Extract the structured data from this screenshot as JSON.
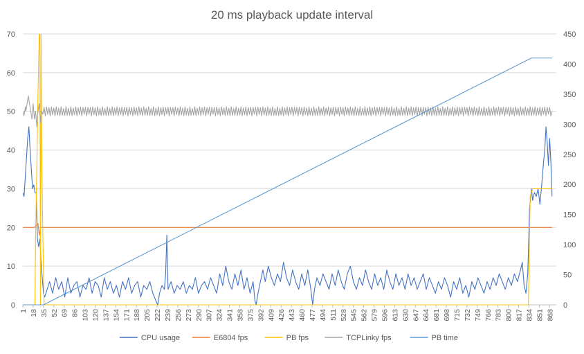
{
  "chart_data": {
    "type": "line",
    "title": "20 ms playback update interval",
    "xlabel": "",
    "ylabel": "",
    "x_tick_labels": [
      "1",
      "18",
      "35",
      "52",
      "69",
      "86",
      "103",
      "120",
      "137",
      "154",
      "171",
      "188",
      "205",
      "222",
      "239",
      "256",
      "273",
      "290",
      "307",
      "324",
      "341",
      "358",
      "375",
      "392",
      "409",
      "426",
      "443",
      "460",
      "477",
      "494",
      "511",
      "528",
      "545",
      "562",
      "579",
      "596",
      "613",
      "630",
      "647",
      "664",
      "681",
      "698",
      "715",
      "732",
      "749",
      "766",
      "783",
      "800",
      "817",
      "834",
      "851",
      "868"
    ],
    "x_range": [
      1,
      879
    ],
    "y_left": {
      "range": [
        0,
        70
      ],
      "ticks": [
        "0",
        "10",
        "20",
        "30",
        "40",
        "50",
        "60",
        "70"
      ]
    },
    "y_right": {
      "range": [
        0,
        450
      ],
      "ticks": [
        "0",
        "50",
        "100",
        "150",
        "200",
        "250",
        "300",
        "350",
        "400",
        "450"
      ]
    },
    "grid": true,
    "legend_position": "bottom",
    "series": [
      {
        "name": "CPU usage",
        "axis": "left",
        "color": "#4472c4",
        "points": [
          [
            1,
            29
          ],
          [
            3,
            28
          ],
          [
            5,
            33
          ],
          [
            7,
            38
          ],
          [
            9,
            43
          ],
          [
            11,
            46
          ],
          [
            13,
            40
          ],
          [
            15,
            35
          ],
          [
            17,
            30
          ],
          [
            19,
            31
          ],
          [
            21,
            29
          ],
          [
            23,
            29
          ],
          [
            25,
            17
          ],
          [
            27,
            15
          ],
          [
            29,
            17
          ],
          [
            31,
            11
          ],
          [
            33,
            7
          ],
          [
            35,
            3
          ],
          [
            37,
            2
          ],
          [
            39,
            3
          ],
          [
            45,
            6
          ],
          [
            50,
            3
          ],
          [
            55,
            7
          ],
          [
            60,
            4
          ],
          [
            65,
            6
          ],
          [
            70,
            2
          ],
          [
            75,
            7
          ],
          [
            80,
            3
          ],
          [
            85,
            5
          ],
          [
            90,
            6
          ],
          [
            95,
            2
          ],
          [
            100,
            5
          ],
          [
            105,
            4
          ],
          [
            110,
            7
          ],
          [
            115,
            3
          ],
          [
            120,
            6
          ],
          [
            125,
            5
          ],
          [
            130,
            2
          ],
          [
            135,
            7
          ],
          [
            140,
            4
          ],
          [
            145,
            6
          ],
          [
            150,
            3
          ],
          [
            155,
            5
          ],
          [
            160,
            2
          ],
          [
            165,
            6
          ],
          [
            170,
            4
          ],
          [
            175,
            7
          ],
          [
            180,
            3
          ],
          [
            185,
            5
          ],
          [
            190,
            6
          ],
          [
            195,
            2
          ],
          [
            200,
            5
          ],
          [
            205,
            4
          ],
          [
            210,
            6
          ],
          [
            215,
            3
          ],
          [
            220,
            1
          ],
          [
            223,
            0
          ],
          [
            226,
            3
          ],
          [
            230,
            5
          ],
          [
            234,
            4
          ],
          [
            236,
            8
          ],
          [
            238,
            18
          ],
          [
            240,
            4
          ],
          [
            245,
            6
          ],
          [
            250,
            3
          ],
          [
            255,
            5
          ],
          [
            260,
            4
          ],
          [
            265,
            6
          ],
          [
            270,
            3
          ],
          [
            275,
            5
          ],
          [
            280,
            4
          ],
          [
            285,
            7
          ],
          [
            290,
            3
          ],
          [
            295,
            5
          ],
          [
            300,
            6
          ],
          [
            305,
            4
          ],
          [
            310,
            7
          ],
          [
            315,
            5
          ],
          [
            320,
            3
          ],
          [
            325,
            8
          ],
          [
            330,
            5
          ],
          [
            335,
            10
          ],
          [
            340,
            6
          ],
          [
            345,
            4
          ],
          [
            350,
            8
          ],
          [
            355,
            5
          ],
          [
            360,
            9
          ],
          [
            365,
            4
          ],
          [
            370,
            7
          ],
          [
            375,
            3
          ],
          [
            380,
            6
          ],
          [
            383,
            1
          ],
          [
            385,
            0
          ],
          [
            388,
            3
          ],
          [
            392,
            6
          ],
          [
            396,
            9
          ],
          [
            400,
            6
          ],
          [
            405,
            10
          ],
          [
            410,
            7
          ],
          [
            415,
            5
          ],
          [
            420,
            8
          ],
          [
            425,
            6
          ],
          [
            430,
            11
          ],
          [
            435,
            7
          ],
          [
            440,
            5
          ],
          [
            445,
            9
          ],
          [
            450,
            6
          ],
          [
            455,
            4
          ],
          [
            460,
            8
          ],
          [
            465,
            5
          ],
          [
            470,
            9
          ],
          [
            475,
            4
          ],
          [
            478,
            0
          ],
          [
            481,
            4
          ],
          [
            485,
            7
          ],
          [
            490,
            5
          ],
          [
            495,
            8
          ],
          [
            500,
            6
          ],
          [
            505,
            4
          ],
          [
            510,
            8
          ],
          [
            515,
            5
          ],
          [
            520,
            9
          ],
          [
            525,
            6
          ],
          [
            530,
            4
          ],
          [
            535,
            8
          ],
          [
            540,
            10
          ],
          [
            545,
            6
          ],
          [
            550,
            4
          ],
          [
            555,
            7
          ],
          [
            560,
            5
          ],
          [
            565,
            9
          ],
          [
            570,
            6
          ],
          [
            575,
            4
          ],
          [
            580,
            8
          ],
          [
            585,
            5
          ],
          [
            590,
            7
          ],
          [
            595,
            4
          ],
          [
            600,
            9
          ],
          [
            605,
            6
          ],
          [
            610,
            4
          ],
          [
            615,
            8
          ],
          [
            620,
            5
          ],
          [
            625,
            7
          ],
          [
            630,
            4
          ],
          [
            635,
            8
          ],
          [
            640,
            5
          ],
          [
            645,
            7
          ],
          [
            650,
            4
          ],
          [
            655,
            6
          ],
          [
            660,
            8
          ],
          [
            665,
            4
          ],
          [
            670,
            7
          ],
          [
            675,
            5
          ],
          [
            680,
            3
          ],
          [
            685,
            6
          ],
          [
            690,
            4
          ],
          [
            695,
            7
          ],
          [
            700,
            5
          ],
          [
            705,
            2
          ],
          [
            710,
            6
          ],
          [
            715,
            4
          ],
          [
            720,
            7
          ],
          [
            725,
            3
          ],
          [
            730,
            5
          ],
          [
            735,
            2
          ],
          [
            740,
            6
          ],
          [
            745,
            4
          ],
          [
            750,
            7
          ],
          [
            755,
            5
          ],
          [
            760,
            3
          ],
          [
            765,
            6
          ],
          [
            770,
            4
          ],
          [
            775,
            7
          ],
          [
            780,
            5
          ],
          [
            785,
            8
          ],
          [
            790,
            6
          ],
          [
            795,
            4
          ],
          [
            800,
            7
          ],
          [
            805,
            5
          ],
          [
            810,
            8
          ],
          [
            815,
            6
          ],
          [
            820,
            9
          ],
          [
            823,
            11
          ],
          [
            826,
            5
          ],
          [
            829,
            3
          ],
          [
            832,
            8
          ],
          [
            835,
            25
          ],
          [
            838,
            30
          ],
          [
            840,
            27
          ],
          [
            843,
            29
          ],
          [
            846,
            28
          ],
          [
            849,
            30
          ],
          [
            852,
            26
          ],
          [
            855,
            31
          ],
          [
            858,
            37
          ],
          [
            860,
            40
          ],
          [
            862,
            46
          ],
          [
            864,
            42
          ],
          [
            866,
            36
          ],
          [
            868,
            43
          ],
          [
            870,
            37
          ],
          [
            872,
            28
          ]
        ]
      },
      {
        "name": "E6804 fps",
        "axis": "left",
        "color": "#ed7d31",
        "points": [
          [
            1,
            20
          ],
          [
            10,
            20
          ],
          [
            20,
            20
          ],
          [
            26,
            21
          ],
          [
            28,
            18
          ],
          [
            30,
            20
          ],
          [
            40,
            20
          ],
          [
            860,
            20
          ],
          [
            872,
            20
          ]
        ]
      },
      {
        "name": "PB fps",
        "axis": "left",
        "color": "#ffc000",
        "points": [
          [
            1,
            0
          ],
          [
            21,
            0
          ],
          [
            22,
            18
          ],
          [
            24,
            35
          ],
          [
            26,
            55
          ],
          [
            28,
            70
          ],
          [
            29,
            70
          ],
          [
            30,
            0
          ],
          [
            31,
            70
          ],
          [
            32,
            40
          ],
          [
            34,
            17
          ],
          [
            36,
            0
          ],
          [
            823,
            0
          ],
          [
            833,
            0
          ],
          [
            836,
            28
          ],
          [
            840,
            30
          ],
          [
            872,
            30
          ]
        ]
      },
      {
        "name": "TCPLinky fps",
        "axis": "left",
        "color": "#a5a5a5",
        "points": [
          [
            1,
            50
          ],
          [
            6,
            50
          ],
          [
            8,
            52
          ],
          [
            10,
            54
          ],
          [
            12,
            52
          ],
          [
            14,
            50
          ],
          [
            16,
            48
          ],
          [
            18,
            52
          ],
          [
            20,
            48
          ],
          [
            22,
            50
          ],
          [
            24,
            46
          ],
          [
            26,
            50
          ],
          [
            28,
            52
          ],
          [
            30,
            47
          ],
          [
            32,
            50
          ],
          [
            872,
            50
          ]
        ],
        "oscillation": 1.2
      },
      {
        "name": "PB time",
        "axis": "right",
        "color": "#5b9bd5",
        "points": [
          [
            1,
            0
          ],
          [
            35,
            0
          ],
          [
            838,
            410
          ],
          [
            872,
            410
          ]
        ]
      }
    ]
  }
}
